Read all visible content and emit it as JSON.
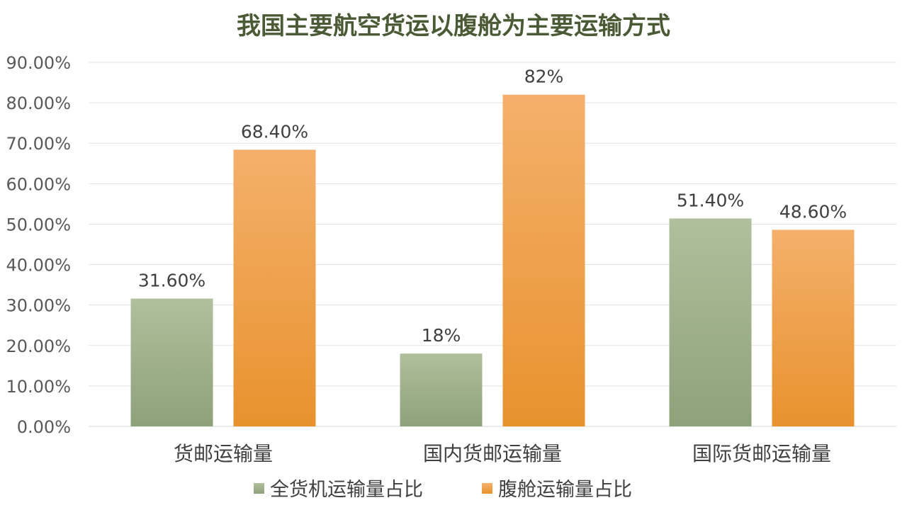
{
  "chart_data": {
    "type": "bar",
    "title": "我国主要航空货运以腹舱为主要运输方式",
    "categories": [
      "货邮运输量",
      "国内货邮运输量",
      "国际货邮运输量"
    ],
    "series": [
      {
        "name": "全货机运输量占比",
        "values": [
          31.6,
          18,
          51.4
        ],
        "labels": [
          "31.60%",
          "18%",
          "51.40%"
        ],
        "color_top": "#b0bf9c",
        "color_bottom": "#8ea27a"
      },
      {
        "name": "腹舱运输量占比",
        "values": [
          68.4,
          82,
          48.6
        ],
        "labels": [
          "68.40%",
          "82%",
          "48.60%"
        ],
        "color_top": "#f4b06b",
        "color_bottom": "#e8922e"
      }
    ],
    "ylim": [
      0,
      90
    ],
    "yticks": [
      0,
      10,
      20,
      30,
      40,
      50,
      60,
      70,
      80,
      90
    ],
    "ytick_labels": [
      "0.00%",
      "10.00%",
      "20.00%",
      "30.00%",
      "40.00%",
      "50.00%",
      "60.00%",
      "70.00%",
      "80.00%",
      "90.00%"
    ],
    "grid": true,
    "legend_position": "bottom",
    "xlabel": "",
    "ylabel": ""
  }
}
